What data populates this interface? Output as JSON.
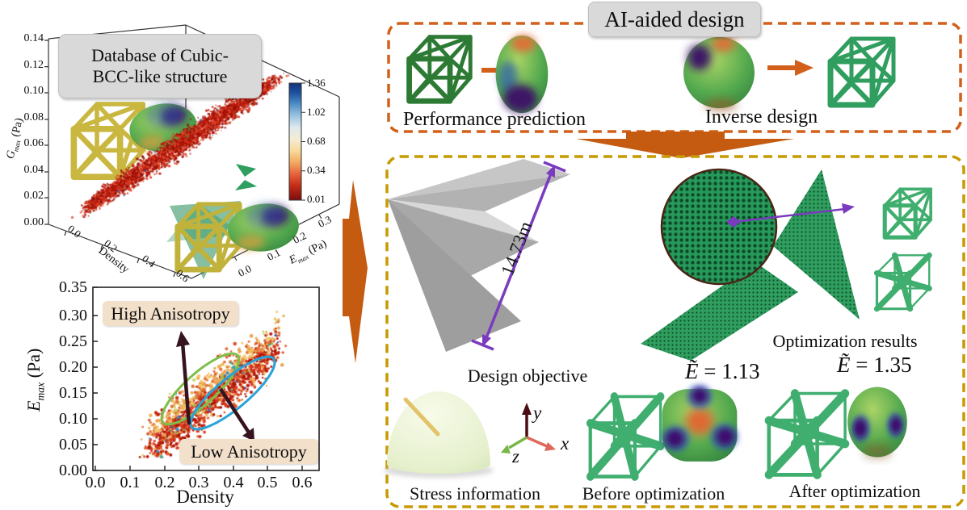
{
  "db_chart": {
    "title_line1": "Database of Cubic-",
    "title_line2": "BCC-like structure",
    "z_label": {
      "sym": "G",
      "sub": "max",
      "unit": " (Pa)"
    },
    "z_ticks": [
      "0.14",
      "0.12",
      "0.10",
      "0.08",
      "0.06",
      "0.04",
      "0.02",
      "0.00"
    ],
    "x_label": "Density",
    "x_ticks": [
      "0.0",
      "0.2",
      "0.4",
      "0.6"
    ],
    "y_label": {
      "sym": "E",
      "sub": "max",
      "unit": " (Pa)"
    },
    "y_ticks": [
      "0.0",
      "0.1",
      "0.2",
      "0.3"
    ],
    "colorbar_ticks": [
      "1.36",
      "1.02",
      "0.68",
      "0.34",
      "0.01"
    ]
  },
  "aniso_chart": {
    "y_label": {
      "sym": "E",
      "sub": "max",
      "unit": " (Pa)"
    },
    "x_label": "Density",
    "x_ticks": [
      "0.0",
      "0.1",
      "0.2",
      "0.3",
      "0.4",
      "0.5",
      "0.6"
    ],
    "y_ticks": [
      "0.35",
      "0.30",
      "0.25",
      "0.20",
      "0.15",
      "0.10",
      "0.05",
      "0.00"
    ],
    "high_label": "High Anisotropy",
    "low_label": "Low Anisotropy"
  },
  "ai_box": {
    "title": "AI-aided design",
    "left_label": "Performance prediction",
    "right_label": "Inverse design"
  },
  "design_box": {
    "dimension": "14.73m",
    "objective_label": "Design objective",
    "stress_label": "Stress information",
    "results_label": "Optimization results",
    "before_label": "Before optimization",
    "after_label": "After optimization",
    "e_symbol": "Ẽ",
    "e_before": "= 1.13",
    "e_after": "= 1.35"
  },
  "triad": {
    "x": "x",
    "y": "y",
    "z": "z"
  },
  "colors": {
    "accent_orange": "#c55a11",
    "border_orange": "#d2601a",
    "border_gold": "#c79a00",
    "purple": "#7a3bbf",
    "green_structure": "#2f9e5f",
    "yellow_structure": "#c9b73f",
    "dark_arrow": "#35141f"
  },
  "chart_data": [
    {
      "type": "scatter",
      "projection": "3d",
      "title": "Database of Cubic-BCC-like structure",
      "xlabel": "Density",
      "ylabel": "E_max (Pa)",
      "zlabel": "G_max (Pa)",
      "x_ticks": [
        0.0,
        0.2,
        0.4,
        0.6
      ],
      "y_ticks": [
        0.0,
        0.1,
        0.2,
        0.3
      ],
      "z_ticks": [
        0.0,
        0.02,
        0.04,
        0.06,
        0.08,
        0.1,
        0.12,
        0.14
      ],
      "colorbar": {
        "min": 0.01,
        "max": 1.36,
        "ticks": [
          1.36,
          1.02,
          0.68,
          0.34,
          0.01
        ],
        "colors_top_to_bottom": [
          "#16337e",
          "#4f8ec6",
          "#dfe9ee",
          "#f4ecd2",
          "#f2a860",
          "#c22b16",
          "#7c0c0c"
        ]
      },
      "points_summary": "dense elongated cloud of ~4000 red points with strong positive correlation, spanning Density 0.15-0.60, E_max 0.00-0.30, G_max 0.01-0.12",
      "cloud": {
        "n": 3400
      }
    },
    {
      "type": "scatter",
      "xlabel": "Density",
      "ylabel": "E_max (Pa)",
      "xlim": [
        0.0,
        0.65
      ],
      "ylim": [
        0.0,
        0.35
      ],
      "x_ticks": [
        0.0,
        0.1,
        0.2,
        0.3,
        0.4,
        0.5,
        0.6
      ],
      "y_ticks": [
        0.0,
        0.05,
        0.1,
        0.15,
        0.2,
        0.25,
        0.3,
        0.35
      ],
      "n_points": 1500,
      "trend": {
        "x_range": [
          0.17,
          0.52
        ],
        "line": {
          "slope": 0.52,
          "intercept": -0.034
        },
        "sigma": 0.024
      },
      "clusters": [
        {
          "label": "High Anisotropy",
          "ellipse_color": "#7dbf4a",
          "center": [
            0.31,
            0.16
          ]
        },
        {
          "label": "Low Anisotropy",
          "ellipse_color": "#29a3d8",
          "center": [
            0.38,
            0.15
          ]
        }
      ],
      "annotations": [
        "High Anisotropy",
        "Low Anisotropy"
      ],
      "point_colors": "mostly red/crimson; orange and yellow points concentrated above the trend line; sparse blue/green outliers"
    }
  ]
}
